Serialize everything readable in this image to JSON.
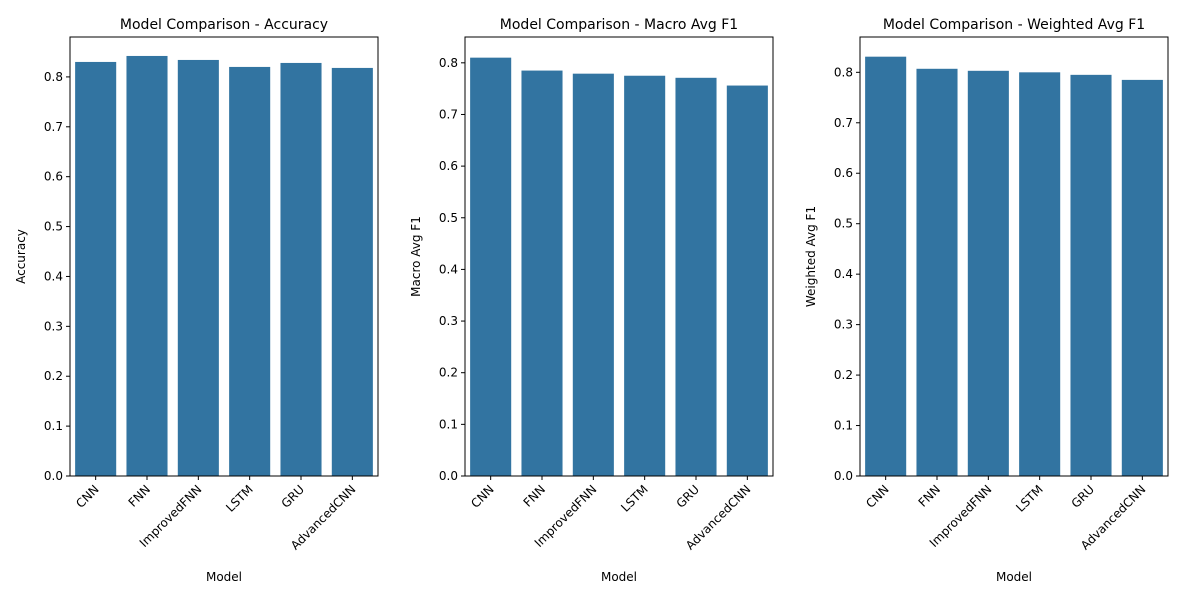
{
  "chart_data": [
    {
      "type": "bar",
      "title": "Model Comparison - Accuracy",
      "xlabel": "Model",
      "ylabel": "Accuracy",
      "categories": [
        "CNN",
        "FNN",
        "ImprovedFNN",
        "LSTM",
        "GRU",
        "AdvancedCNN"
      ],
      "values": [
        0.83,
        0.842,
        0.834,
        0.82,
        0.828,
        0.818
      ],
      "ylim": [
        0,
        0.88
      ],
      "yticks": [
        "0.0",
        "0.1",
        "0.2",
        "0.3",
        "0.4",
        "0.5",
        "0.6",
        "0.7",
        "0.8"
      ],
      "color": "#3274a1",
      "grid": false
    },
    {
      "type": "bar",
      "title": "Model Comparison - Macro Avg F1",
      "xlabel": "Model",
      "ylabel": "Macro Avg F1",
      "categories": [
        "CNN",
        "FNN",
        "ImprovedFNN",
        "LSTM",
        "GRU",
        "AdvancedCNN"
      ],
      "values": [
        0.81,
        0.785,
        0.779,
        0.775,
        0.771,
        0.756
      ],
      "ylim": [
        0,
        0.85
      ],
      "yticks": [
        "0.0",
        "0.1",
        "0.2",
        "0.3",
        "0.4",
        "0.5",
        "0.6",
        "0.7",
        "0.8"
      ],
      "color": "#3274a1",
      "grid": false
    },
    {
      "type": "bar",
      "title": "Model Comparison - Weighted Avg F1",
      "xlabel": "Model",
      "ylabel": "Weighted Avg F1",
      "categories": [
        "CNN",
        "FNN",
        "ImprovedFNN",
        "LSTM",
        "GRU",
        "AdvancedCNN"
      ],
      "values": [
        0.831,
        0.807,
        0.803,
        0.8,
        0.795,
        0.785
      ],
      "ylim": [
        0,
        0.87
      ],
      "yticks": [
        "0.0",
        "0.1",
        "0.2",
        "0.3",
        "0.4",
        "0.5",
        "0.6",
        "0.7",
        "0.8"
      ],
      "color": "#3274a1",
      "grid": false
    }
  ]
}
